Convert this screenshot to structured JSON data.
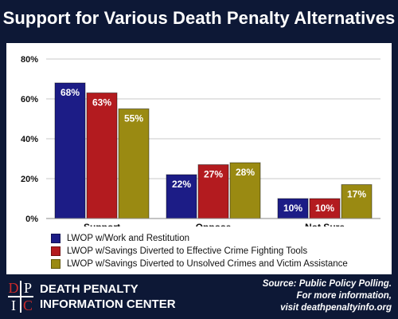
{
  "chart_data": {
    "type": "bar",
    "title": "Support for Various Death Penalty Alternatives",
    "categories": [
      "Support",
      "Oppose",
      "Not Sure"
    ],
    "series": [
      {
        "name": "LWOP w/Work and Restitution",
        "values": [
          68,
          22,
          10
        ],
        "labels": [
          "68%",
          "22%",
          "10%"
        ]
      },
      {
        "name": "LWOP w/Savings Diverted to Effective Crime Fighting Tools",
        "values": [
          63,
          27,
          10
        ],
        "labels": [
          "63%",
          "27%",
          "10%"
        ]
      },
      {
        "name": "LWOP w/Savings Diverted to Unsolved Crimes and Victim Assistance",
        "values": [
          55,
          28,
          17
        ],
        "labels": [
          "55%",
          "28%",
          "17%"
        ]
      }
    ],
    "yticks": [
      0,
      20,
      40,
      60,
      80
    ],
    "ytick_labels": [
      "0%",
      "20%",
      "40%",
      "60%",
      "80%"
    ],
    "ylim": [
      0,
      80
    ],
    "grid": true,
    "legend_position": "bottom-left"
  },
  "colors": {
    "series": [
      "#1c1c86",
      "#b31b1f",
      "#9a8a12"
    ],
    "background": "#0d1836",
    "panel": "#ffffff"
  },
  "footer": {
    "logo_letters": [
      "D",
      "P",
      "I",
      "C"
    ],
    "org_line1": "DEATH PENALTY",
    "org_line2": "INFORMATION CENTER",
    "source_line1": "Source: Public Policy Polling.",
    "source_line2": "For more information,",
    "source_line3": "visit deathpenaltyinfo.org"
  }
}
